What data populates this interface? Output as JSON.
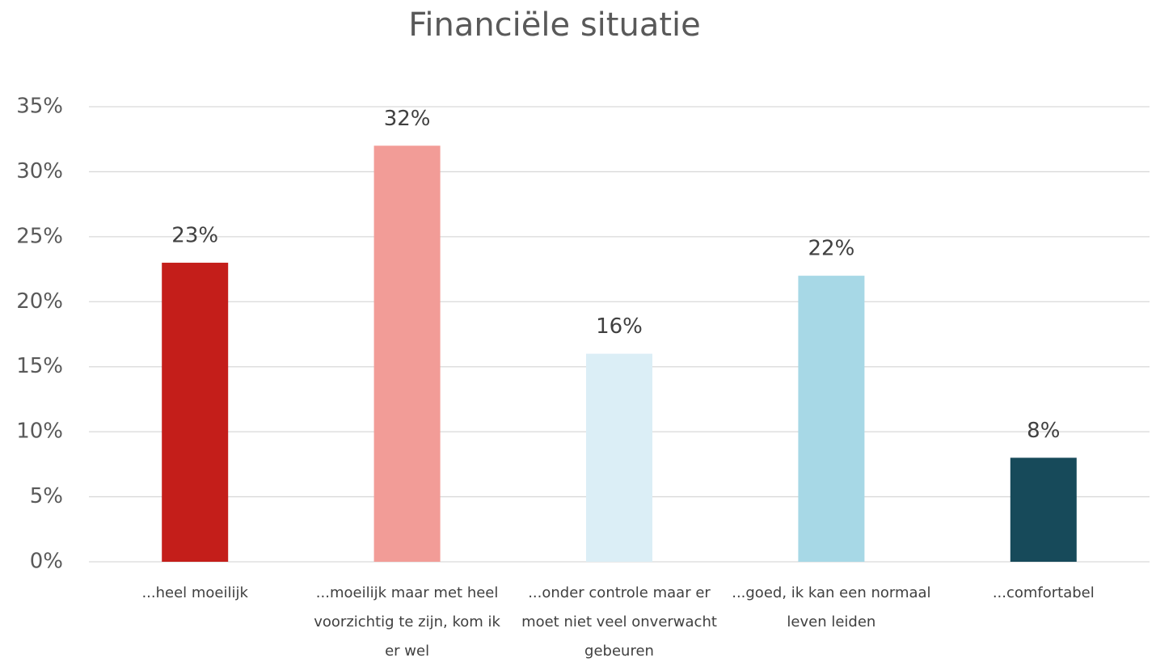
{
  "chart_data": {
    "type": "bar",
    "title": "Financiële situatie",
    "categories": [
      "...heel moeilijk",
      "...moeilijk maar met heel voorzichtig te zijn, kom ik er wel",
      "...onder controle maar er moet niet veel onverwacht gebeuren",
      "...goed, ik kan een normaal leven leiden",
      "...comfortabel"
    ],
    "values": [
      23,
      32,
      16,
      22,
      8
    ],
    "value_labels": [
      "23%",
      "32%",
      "16%",
      "22%",
      "8%"
    ],
    "colors": [
      "#c41e1a",
      "#f29c97",
      "#dbeef6",
      "#a7d8e6",
      "#174a5a"
    ],
    "ylim": [
      0,
      35
    ],
    "yticks": [
      {
        "value": 0,
        "label": "0%"
      },
      {
        "value": 5,
        "label": "5%"
      },
      {
        "value": 10,
        "label": "10%"
      },
      {
        "value": 15,
        "label": "15%"
      },
      {
        "value": 20,
        "label": "20%"
      },
      {
        "value": 25,
        "label": "25%"
      },
      {
        "value": 30,
        "label": "30%"
      },
      {
        "value": 35,
        "label": "35%"
      }
    ],
    "grid": true
  }
}
